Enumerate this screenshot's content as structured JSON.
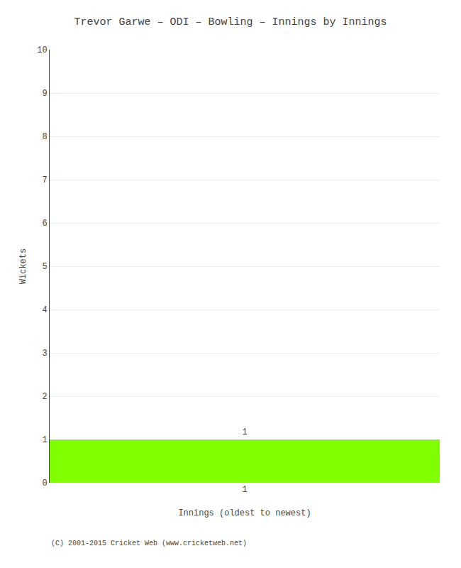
{
  "chart_data": {
    "type": "bar",
    "title": "Trevor Garwe – ODI – Bowling – Innings by Innings",
    "xlabel": "Innings (oldest to newest)",
    "ylabel": "Wickets",
    "categories": [
      "1"
    ],
    "values": [
      1
    ],
    "color": "#80ff00",
    "ylim": [
      0,
      10
    ],
    "yticks": [
      0,
      1,
      2,
      3,
      4,
      5,
      6,
      7,
      8,
      9,
      10
    ],
    "grid": true,
    "data_labels": true,
    "annotations": [
      "(C) 2001-2015 Cricket Web (www.cricketweb.net)"
    ]
  }
}
